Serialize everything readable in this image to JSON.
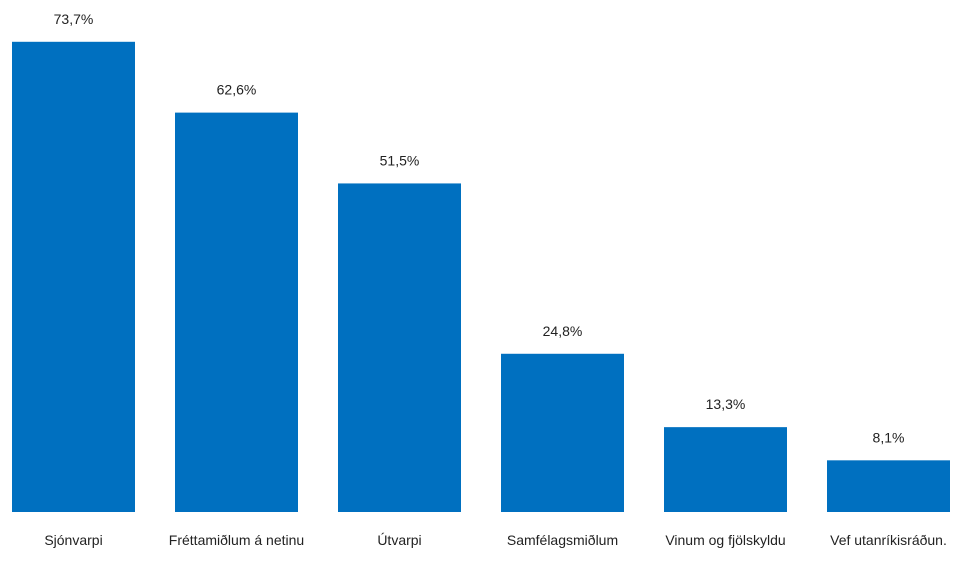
{
  "chart_data": {
    "type": "bar",
    "categories": [
      "Sjónvarpi",
      "Fréttamiðlum á netinu",
      "Útvarpi",
      "Samfélagsmiðlum",
      "Vinum og fjölskyldu",
      "Vef utanríkisráðun."
    ],
    "values": [
      73.7,
      62.6,
      51.5,
      24.8,
      13.3,
      8.1
    ],
    "value_labels": [
      "73,7%",
      "62,6%",
      "51,5%",
      "24,8%",
      "13,3%",
      "8,1%"
    ],
    "color": "#0070c0"
  }
}
